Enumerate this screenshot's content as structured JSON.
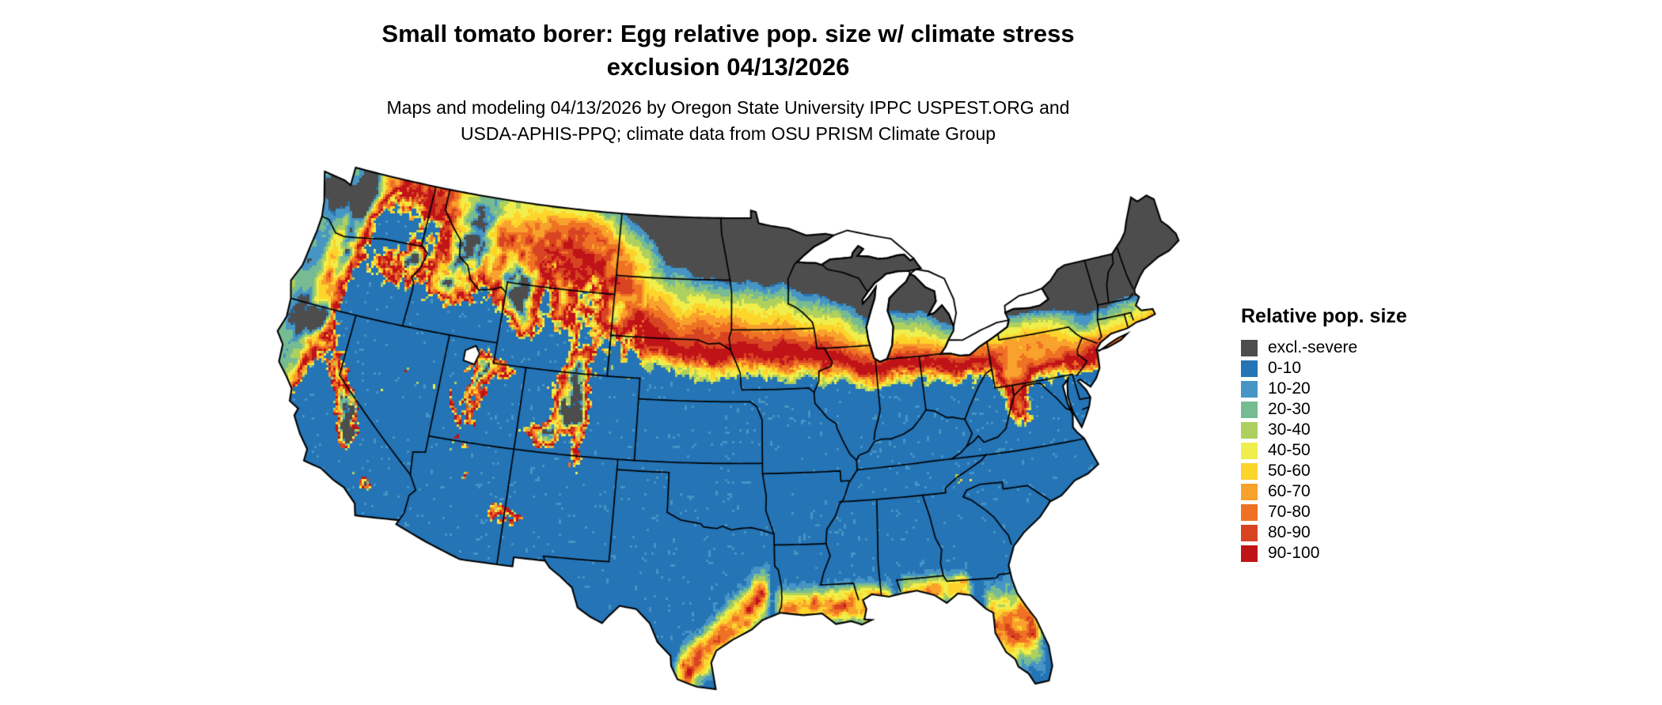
{
  "title": {
    "line1": "Small tomato borer: Egg relative pop. size w/ climate stress",
    "line2": "exclusion 04/13/2026"
  },
  "subtitle": {
    "line1": "Maps and modeling 04/13/2026 by Oregon State University IPPC USPEST.ORG and",
    "line2": "USDA-APHIS-PPQ; climate data from OSU PRISM Climate Group"
  },
  "legend": {
    "title": "Relative pop. size",
    "items": [
      {
        "label": "excl.-severe",
        "color": "#4d4d4d"
      },
      {
        "label": "0-10",
        "color": "#2474b6"
      },
      {
        "label": "10-20",
        "color": "#4695c4"
      },
      {
        "label": "20-30",
        "color": "#77bb92"
      },
      {
        "label": "30-40",
        "color": "#aed05e"
      },
      {
        "label": "40-50",
        "color": "#f0ee4b"
      },
      {
        "label": "50-60",
        "color": "#fdd42a"
      },
      {
        "label": "60-70",
        "color": "#f9a12d"
      },
      {
        "label": "70-80",
        "color": "#ef7123"
      },
      {
        "label": "80-90",
        "color": "#d84422"
      },
      {
        "label": "90-100",
        "color": "#c01318"
      }
    ]
  }
}
